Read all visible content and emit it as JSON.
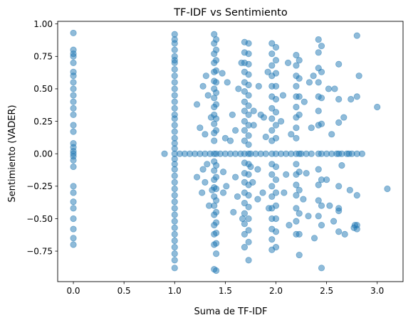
{
  "chart_data": {
    "type": "scatter",
    "title": "TF-IDF vs Sentimiento",
    "xlabel": "Suma de TF-IDF",
    "ylabel": "Sentimiento (VADER)",
    "xlim": [
      -0.155,
      3.255
    ],
    "ylim": [
      -0.985,
      1.02
    ],
    "xticks": [
      0.0,
      0.5,
      1.0,
      1.5,
      2.0,
      2.5,
      3.0
    ],
    "xtick_labels": [
      "0.0",
      "0.5",
      "1.0",
      "1.5",
      "2.0",
      "2.5",
      "3.0"
    ],
    "yticks": [
      -0.75,
      -0.5,
      -0.25,
      0.0,
      0.25,
      0.5,
      0.75,
      1.0
    ],
    "ytick_labels": [
      "−0.75",
      "−0.50",
      "−0.25",
      "0.00",
      "0.25",
      "0.50",
      "0.75",
      "1.00"
    ],
    "grid": false,
    "marker_color": "#1f77b4",
    "marker_alpha": 0.5,
    "points": {
      "x": [
        0,
        0,
        0,
        0,
        0,
        0,
        0,
        0,
        0,
        0,
        0,
        0,
        0,
        0,
        0,
        0,
        0,
        0,
        0,
        0,
        0,
        0,
        0,
        0,
        0,
        0,
        0,
        0,
        0,
        0,
        1,
        1,
        1,
        1,
        1,
        1,
        1,
        1,
        1,
        1,
        1,
        1,
        1,
        1,
        1,
        1,
        1,
        1,
        1,
        1,
        1,
        1,
        1,
        1,
        1,
        1,
        1,
        1,
        1,
        1,
        1,
        1,
        1,
        1,
        1,
        1,
        1,
        1,
        1,
        1,
        1.39,
        1.39,
        1.39,
        1.39,
        1.39,
        1.39,
        1.39,
        1.39,
        1.39,
        1.39,
        1.39,
        1.39,
        1.39,
        1.39,
        1.39,
        1.39,
        1.39,
        1.39,
        1.39,
        1.39,
        1.39,
        1.39,
        1.39,
        1.39,
        1.39,
        1.41,
        1.41,
        1.41,
        1.41,
        1.41,
        1.41,
        1.41,
        1.41,
        1.41,
        1.41,
        1.41,
        1.41,
        1.41,
        1.41,
        1.41,
        1.41,
        1.41,
        1.41,
        1.41,
        1.41,
        1.69,
        1.69,
        1.69,
        1.69,
        1.69,
        1.69,
        1.69,
        1.69,
        1.69,
        1.69,
        1.69,
        1.69,
        1.69,
        1.69,
        1.69,
        1.69,
        1.69,
        1.69,
        1.69,
        1.69,
        1.69,
        1.73,
        1.73,
        1.73,
        1.73,
        1.73,
        1.73,
        1.73,
        1.73,
        1.73,
        1.73,
        1.73,
        1.73,
        1.73,
        1.73,
        1.73,
        1.73,
        1.73,
        1.73,
        1.73,
        1.73,
        1.73,
        1.96,
        1.96,
        1.96,
        1.96,
        1.96,
        1.96,
        1.96,
        1.96,
        1.96,
        1.96,
        1.96,
        1.96,
        1.96,
        1.96,
        1.96,
        1.96,
        1.96,
        1.96,
        1.96,
        1.96,
        2.0,
        2.0,
        2.0,
        2.0,
        2.0,
        2.0,
        2.0,
        2.0,
        2.0,
        2.0,
        2.0,
        2.0,
        2.0,
        2.0,
        2.0,
        2.0,
        2.2,
        2.2,
        2.2,
        2.2,
        2.2,
        2.2,
        2.2,
        2.2,
        2.2,
        2.2,
        2.2,
        2.2,
        2.2,
        2.2,
        2.2,
        2.2,
        2.2,
        2.23,
        2.23,
        2.23,
        2.23,
        2.23,
        2.23,
        2.23,
        2.23,
        2.23,
        2.23,
        2.42,
        2.42,
        2.42,
        2.42,
        2.42,
        2.42,
        2.42,
        2.42,
        2.42,
        2.42,
        2.42,
        2.42,
        2.45,
        2.45,
        2.45,
        2.45,
        2.45,
        2.45,
        2.45,
        2.45,
        2.45,
        2.62,
        2.62,
        2.62,
        2.62,
        2.62,
        2.62,
        2.62,
        2.62,
        2.8,
        2.8,
        2.8,
        2.8,
        2.8,
        2.8,
        0.9,
        1.05,
        1.1,
        1.15,
        1.2,
        1.25,
        1.3,
        1.35,
        1.45,
        1.5,
        1.55,
        1.6,
        1.65,
        1.75,
        1.8,
        1.85,
        1.9,
        2.05,
        2.1,
        2.15,
        2.25,
        2.3,
        2.35,
        2.5,
        2.55,
        2.6,
        2.65,
        2.7,
        2.75,
        2.85,
        1.22,
        1.28,
        1.31,
        1.33,
        1.36,
        1.47,
        1.52,
        1.57,
        1.63,
        1.66,
        1.78,
        1.83,
        1.88,
        1.92,
        2.07,
        2.12,
        2.28,
        2.33,
        2.37,
        2.52,
        2.58,
        2.67,
        2.74,
        1.22,
        1.27,
        1.3,
        1.34,
        1.37,
        1.48,
        1.51,
        1.58,
        1.62,
        1.67,
        1.77,
        1.82,
        1.87,
        1.93,
        2.08,
        2.13,
        2.27,
        2.32,
        2.38,
        2.53,
        2.57,
        2.68,
        2.73,
        1.25,
        1.3,
        1.5,
        1.55,
        1.6,
        1.78,
        1.85,
        1.9,
        2.05,
        2.15,
        2.35,
        2.55,
        1.28,
        1.32,
        1.48,
        1.6,
        1.75,
        1.82,
        2.1,
        2.3,
        2.5,
        2.65,
        3.0,
        3.1,
        2.82,
        2.77,
        2.72,
        2.78
      ],
      "y": [
        0.93,
        0.8,
        0.77,
        0.75,
        0.7,
        0.63,
        0.6,
        0.55,
        0.5,
        0.45,
        0.4,
        0.35,
        0.3,
        0.22,
        0.17,
        0.08,
        0.05,
        0.02,
        0.0,
        -0.02,
        -0.05,
        -0.1,
        -0.25,
        -0.3,
        -0.37,
        -0.42,
        -0.5,
        -0.58,
        -0.65,
        -0.7,
        0.92,
        0.88,
        0.85,
        0.8,
        0.75,
        0.72,
        0.7,
        0.65,
        0.6,
        0.55,
        0.5,
        0.45,
        0.4,
        0.35,
        0.3,
        0.27,
        0.22,
        0.17,
        0.12,
        0.08,
        0.04,
        0.0,
        -0.04,
        -0.08,
        -0.12,
        -0.17,
        -0.22,
        -0.27,
        -0.32,
        -0.37,
        -0.42,
        -0.47,
        -0.52,
        -0.57,
        -0.62,
        -0.67,
        -0.72,
        -0.77,
        -0.82,
        -0.88,
        0.92,
        0.85,
        0.77,
        0.7,
        0.63,
        0.56,
        0.5,
        0.43,
        0.36,
        0.3,
        0.23,
        0.16,
        0.1,
        0.0,
        -0.06,
        -0.13,
        -0.2,
        -0.26,
        -0.33,
        -0.4,
        -0.47,
        -0.55,
        -0.62,
        -0.7,
        -0.89,
        0.88,
        0.8,
        0.72,
        0.64,
        0.55,
        0.47,
        0.38,
        0.27,
        0.18,
        0.0,
        -0.09,
        -0.18,
        -0.27,
        -0.36,
        -0.45,
        -0.53,
        -0.61,
        -0.69,
        -0.77,
        -0.9,
        0.86,
        0.78,
        0.7,
        0.63,
        0.55,
        0.48,
        0.4,
        0.33,
        0.25,
        0.18,
        0.1,
        0.0,
        -0.07,
        -0.15,
        -0.22,
        -0.3,
        -0.38,
        -0.46,
        -0.54,
        -0.62,
        -0.72,
        0.85,
        0.77,
        0.69,
        0.61,
        0.53,
        0.45,
        0.37,
        0.3,
        0.22,
        0.14,
        0.07,
        0.0,
        -0.08,
        -0.16,
        -0.24,
        -0.32,
        -0.41,
        -0.5,
        -0.59,
        -0.68,
        -0.82,
        0.85,
        0.77,
        0.68,
        0.6,
        0.52,
        0.44,
        0.35,
        0.27,
        0.18,
        0.1,
        0.0,
        -0.08,
        -0.16,
        -0.25,
        -0.33,
        -0.42,
        -0.5,
        -0.58,
        -0.66,
        -0.74,
        0.82,
        0.72,
        0.62,
        0.52,
        0.42,
        0.32,
        0.22,
        0.12,
        0.0,
        -0.1,
        -0.2,
        -0.3,
        -0.4,
        -0.5,
        -0.6,
        -0.72,
        0.76,
        0.68,
        0.6,
        0.52,
        0.44,
        0.36,
        0.28,
        0.2,
        0.12,
        0.0,
        -0.08,
        -0.16,
        -0.24,
        -0.32,
        -0.42,
        -0.52,
        -0.62,
        0.72,
        0.58,
        0.44,
        0.3,
        0.0,
        -0.14,
        -0.28,
        -0.46,
        -0.62,
        -0.78,
        0.88,
        0.78,
        0.66,
        0.55,
        0.44,
        0.33,
        0.22,
        0.0,
        -0.12,
        -0.24,
        -0.36,
        -0.48,
        0.83,
        0.63,
        0.43,
        0.23,
        0.0,
        -0.2,
        -0.4,
        -0.55,
        -0.88,
        0.69,
        0.42,
        0.24,
        0.0,
        -0.25,
        -0.42,
        -0.6,
        -0.44,
        0.91,
        0.44,
        0.0,
        -0.32,
        -0.55,
        -0.58,
        0.0,
        0.0,
        0.0,
        0.0,
        0.0,
        0.0,
        0.0,
        0.0,
        0.0,
        0.0,
        0.0,
        0.0,
        0.0,
        0.0,
        0.0,
        0.0,
        0.0,
        0.0,
        0.0,
        0.0,
        0.0,
        0.0,
        0.0,
        0.0,
        0.0,
        0.0,
        0.0,
        0.0,
        0.0,
        0.0,
        0.38,
        0.52,
        0.6,
        0.45,
        0.28,
        0.62,
        0.55,
        0.3,
        0.5,
        0.7,
        0.33,
        0.52,
        0.28,
        0.63,
        0.45,
        0.7,
        0.4,
        0.55,
        0.6,
        0.5,
        0.5,
        0.28,
        0.42,
        -0.18,
        -0.3,
        -0.22,
        -0.4,
        -0.28,
        -0.3,
        -0.25,
        -0.45,
        -0.33,
        -0.5,
        -0.22,
        -0.35,
        -0.3,
        -0.42,
        -0.3,
        -0.55,
        -0.35,
        -0.48,
        -0.65,
        -0.4,
        -0.52,
        -0.62,
        -0.28,
        0.2,
        0.15,
        0.12,
        0.1,
        0.18,
        0.22,
        0.3,
        0.13,
        0.25,
        0.15,
        0.2,
        0.15,
        -0.12,
        -0.08,
        -0.14,
        -0.18,
        -0.1,
        -0.12,
        -0.16,
        -0.15,
        -0.2,
        -0.09,
        0.36,
        -0.27,
        0.6,
        -0.57,
        0.0,
        -0.55
      ]
    }
  }
}
